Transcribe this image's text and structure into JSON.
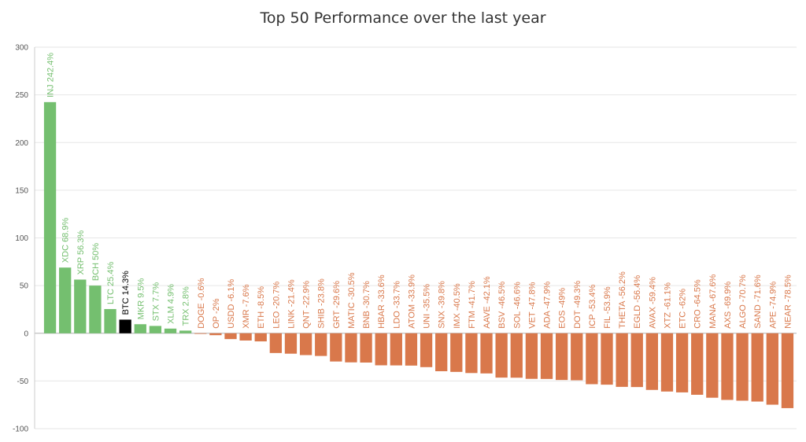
{
  "chart_data": {
    "type": "bar",
    "title": "Top 50 Performance over the last year",
    "xlabel": "",
    "ylabel": "",
    "ylim": [
      -100,
      300
    ],
    "yticks": [
      -100,
      -50,
      0,
      50,
      100,
      150,
      200,
      250,
      300
    ],
    "grid": true,
    "legend": "none",
    "colors": {
      "positive": "#74bf6f",
      "negative": "#d9784b",
      "highlight": "#000000"
    },
    "highlight_category": "BTC",
    "categories": [
      "INJ",
      "XDC",
      "XRP",
      "BCH",
      "LTC",
      "BTC",
      "MKR",
      "STX",
      "XLM",
      "TRX",
      "DOGE",
      "OP",
      "USDD",
      "XMR",
      "ETH",
      "LEO",
      "LINK",
      "QNT",
      "SHIB",
      "GRT",
      "MATIC",
      "BNB",
      "HBAR",
      "LDO",
      "ATOM",
      "UNI",
      "SNX",
      "IMX",
      "FTM",
      "AAVE",
      "BSV",
      "SOL",
      "VET",
      "ADA",
      "EOS",
      "DOT",
      "ICP",
      "FIL",
      "THETA",
      "EGLD",
      "AVAX",
      "XTZ",
      "ETC",
      "CRO",
      "MANA",
      "AXS",
      "ALGO",
      "SAND",
      "APE",
      "NEAR"
    ],
    "values": [
      242.4,
      68.9,
      56.3,
      50,
      25.4,
      14.3,
      9.5,
      7.7,
      4.9,
      2.8,
      -0.6,
      -2,
      -6.1,
      -7.6,
      -8.5,
      -20.7,
      -21.4,
      -22.9,
      -23.8,
      -29.6,
      -30.5,
      -30.7,
      -33.6,
      -33.7,
      -33.9,
      -35.5,
      -39.8,
      -40.5,
      -41.7,
      -42.1,
      -46.5,
      -46.6,
      -47.8,
      -47.9,
      -49,
      -49.3,
      -53.4,
      -53.9,
      -56.2,
      -56.4,
      -59.4,
      -61.1,
      -62,
      -64.5,
      -67.6,
      -69.9,
      -70.7,
      -71.6,
      -74.9,
      -78.5
    ],
    "data_labels": [
      "INJ 242.4%",
      "XDC 68.9%",
      "XRP 56.3%",
      "BCH 50%",
      "LTC 25.4%",
      "BTC 14.3%",
      "MKR 9.5%",
      "STX 7.7%",
      "XLM 4.9%",
      "TRX 2.8%",
      "DOGE -0.6%",
      "OP -2%",
      "USDD -6.1%",
      "XMR -7.6%",
      "ETH -8.5%",
      "LEO -20.7%",
      "LINK -21.4%",
      "QNT -22.9%",
      "SHIB -23.8%",
      "GRT -29.6%",
      "MATIC -30.5%",
      "BNB -30.7%",
      "HBAR -33.6%",
      "LDO -33.7%",
      "ATOM -33.9%",
      "UNI -35.5%",
      "SNX -39.8%",
      "IMX -40.5%",
      "FTM -41.7%",
      "AAVE -42.1%",
      "BSV -46.5%",
      "SOL -46.6%",
      "VET -47.8%",
      "ADA -47.9%",
      "EOS -49%",
      "DOT -49.3%",
      "ICP -53.4%",
      "FIL -53.9%",
      "THETA -56.2%",
      "EGLD -56.4%",
      "AVAX -59.4%",
      "XTZ -61.1%",
      "ETC -62%",
      "CRO -64.5%",
      "MANA -67.6%",
      "AXS -69.9%",
      "ALGO -70.7%",
      "SAND -71.6%",
      "APE -74.9%",
      "NEAR -78.5%"
    ]
  }
}
